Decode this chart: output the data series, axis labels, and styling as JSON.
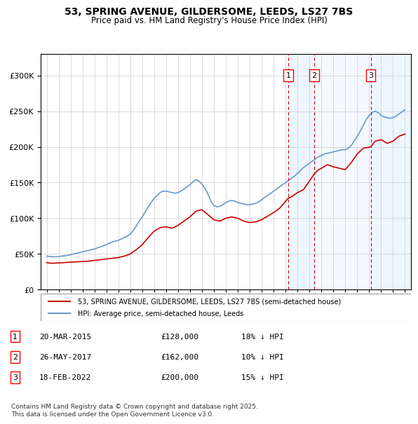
{
  "title_line1": "53, SPRING AVENUE, GILDERSOME, LEEDS, LS27 7BS",
  "title_line2": "Price paid vs. HM Land Registry's House Price Index (HPI)",
  "ylabel": "",
  "legend_label_red": "53, SPRING AVENUE, GILDERSOME, LEEDS, LS27 7BS (semi-detached house)",
  "legend_label_blue": "HPI: Average price, semi-detached house, Leeds",
  "annotation_label": "Contains HM Land Registry data © Crown copyright and database right 2025.\nThis data is licensed under the Open Government Licence v3.0.",
  "transactions": [
    {
      "num": 1,
      "date": "20-MAR-2015",
      "price": 128000,
      "pct": "18% ↓ HPI",
      "x_year": 2015.22
    },
    {
      "num": 2,
      "date": "26-MAY-2017",
      "price": 162000,
      "pct": "10% ↓ HPI",
      "x_year": 2017.4
    },
    {
      "num": 3,
      "date": "18-FEB-2022",
      "price": 200000,
      "pct": "15% ↓ HPI",
      "x_year": 2022.13
    }
  ],
  "hpi_color": "#6699cc",
  "price_color": "#cc0000",
  "dashed_color": "#cc0000",
  "background_shaded": "#ddeeff",
  "ylim": [
    0,
    330000
  ],
  "xlim_start": 1994.5,
  "xlim_end": 2025.5,
  "hpi_data": {
    "years": [
      1995.0,
      1995.25,
      1995.5,
      1995.75,
      1996.0,
      1996.25,
      1996.5,
      1996.75,
      1997.0,
      1997.25,
      1997.5,
      1997.75,
      1998.0,
      1998.25,
      1998.5,
      1998.75,
      1999.0,
      1999.25,
      1999.5,
      1999.75,
      2000.0,
      2000.25,
      2000.5,
      2000.75,
      2001.0,
      2001.25,
      2001.5,
      2001.75,
      2002.0,
      2002.25,
      2002.5,
      2002.75,
      2003.0,
      2003.25,
      2003.5,
      2003.75,
      2004.0,
      2004.25,
      2004.5,
      2004.75,
      2005.0,
      2005.25,
      2005.5,
      2005.75,
      2006.0,
      2006.25,
      2006.5,
      2006.75,
      2007.0,
      2007.25,
      2007.5,
      2007.75,
      2008.0,
      2008.25,
      2008.5,
      2008.75,
      2009.0,
      2009.25,
      2009.5,
      2009.75,
      2010.0,
      2010.25,
      2010.5,
      2010.75,
      2011.0,
      2011.25,
      2011.5,
      2011.75,
      2012.0,
      2012.25,
      2012.5,
      2012.75,
      2013.0,
      2013.25,
      2013.5,
      2013.75,
      2014.0,
      2014.25,
      2014.5,
      2014.75,
      2015.0,
      2015.25,
      2015.5,
      2015.75,
      2016.0,
      2016.25,
      2016.5,
      2016.75,
      2017.0,
      2017.25,
      2017.5,
      2017.75,
      2018.0,
      2018.25,
      2018.5,
      2018.75,
      2019.0,
      2019.25,
      2019.5,
      2019.75,
      2020.0,
      2020.25,
      2020.5,
      2020.75,
      2021.0,
      2021.25,
      2021.5,
      2021.75,
      2022.0,
      2022.25,
      2022.5,
      2022.75,
      2023.0,
      2023.25,
      2023.5,
      2023.75,
      2024.0,
      2024.25,
      2024.5,
      2024.75,
      2025.0
    ],
    "values": [
      47000,
      46500,
      46200,
      46000,
      46500,
      47000,
      47500,
      48000,
      49000,
      50000,
      51000,
      52000,
      53000,
      54000,
      55000,
      56000,
      57000,
      58500,
      60000,
      61500,
      63000,
      65000,
      67000,
      68000,
      69000,
      71000,
      73000,
      75000,
      78000,
      83000,
      89000,
      96000,
      102000,
      109000,
      116000,
      122000,
      128000,
      132000,
      136000,
      138000,
      138000,
      137000,
      136000,
      135000,
      136000,
      138000,
      141000,
      144000,
      147000,
      151000,
      154000,
      152000,
      148000,
      142000,
      134000,
      124000,
      118000,
      116000,
      117000,
      119000,
      122000,
      124000,
      125000,
      124000,
      122000,
      121000,
      120000,
      119000,
      119000,
      120000,
      121000,
      123000,
      126000,
      129000,
      132000,
      135000,
      138000,
      141000,
      144000,
      147000,
      150000,
      153000,
      156000,
      159000,
      163000,
      167000,
      171000,
      174000,
      177000,
      180000,
      183000,
      186000,
      188000,
      190000,
      191000,
      192000,
      193000,
      194000,
      195000,
      196000,
      196000,
      198000,
      202000,
      208000,
      215000,
      222000,
      230000,
      238000,
      244000,
      248000,
      250000,
      248000,
      244000,
      242000,
      241000,
      240000,
      241000,
      243000,
      246000,
      249000,
      252000
    ]
  },
  "price_data": {
    "years": [
      1995.0,
      1995.1,
      1995.5,
      1996.0,
      1996.5,
      1997.0,
      1997.5,
      1998.0,
      1998.5,
      1999.0,
      1999.5,
      2000.0,
      2000.5,
      2001.0,
      2001.5,
      2002.0,
      2002.5,
      2003.0,
      2003.5,
      2004.0,
      2004.5,
      2005.0,
      2005.5,
      2006.0,
      2006.5,
      2007.0,
      2007.5,
      2008.0,
      2008.5,
      2009.0,
      2009.5,
      2010.0,
      2010.5,
      2011.0,
      2011.5,
      2012.0,
      2012.5,
      2013.0,
      2013.5,
      2014.0,
      2014.5,
      2015.22,
      2015.5,
      2016.0,
      2016.5,
      2017.4,
      2017.75,
      2018.0,
      2018.5,
      2019.0,
      2019.5,
      2020.0,
      2020.5,
      2021.0,
      2021.5,
      2022.13,
      2022.5,
      2023.0,
      2023.5,
      2024.0,
      2024.5,
      2025.0
    ],
    "values": [
      38000,
      37500,
      37000,
      37500,
      38000,
      38500,
      39000,
      39500,
      40000,
      41000,
      42000,
      43000,
      44000,
      45000,
      47000,
      50000,
      56000,
      63000,
      73000,
      82000,
      87000,
      88000,
      86000,
      90000,
      96000,
      102000,
      110000,
      112000,
      105000,
      98000,
      96000,
      100000,
      102000,
      100000,
      96000,
      94000,
      95000,
      98000,
      103000,
      108000,
      114000,
      128000,
      130000,
      136000,
      140000,
      162000,
      168000,
      170000,
      175000,
      172000,
      170000,
      168000,
      178000,
      190000,
      198000,
      200000,
      208000,
      210000,
      205000,
      208000,
      215000,
      218000
    ]
  }
}
